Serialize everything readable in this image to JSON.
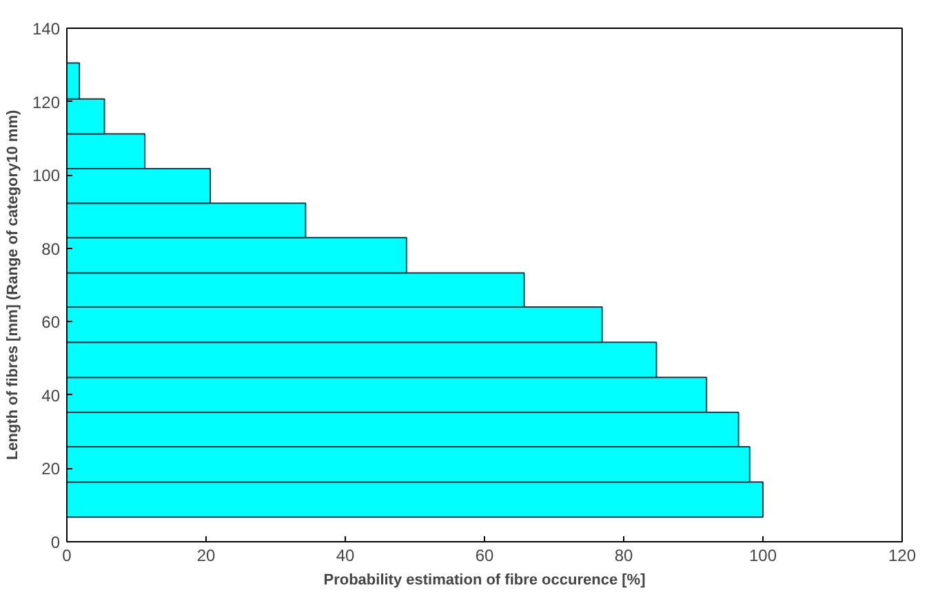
{
  "chart_data": {
    "type": "histogram",
    "orientation": "horizontal",
    "xlabel": "Probability estimation of fibre occurence [%]",
    "ylabel": "Length of fibres [mm] (Range of category10 mm)",
    "bins": [
      6.7,
      16.3,
      25.9,
      35.3,
      44.8,
      54.4,
      64,
      73.3,
      82.9,
      92.3,
      101.7,
      111.2,
      120.7,
      130.5
    ],
    "values": [
      100,
      98.1,
      96.5,
      91.9,
      84.7,
      76.9,
      65.7,
      48.8,
      34.3,
      20.6,
      11.2,
      5.4,
      1.8
    ],
    "color": "#00ffff",
    "xlim": [
      0,
      120
    ],
    "xticks": [
      0,
      20,
      40,
      60,
      80,
      100,
      120
    ],
    "ylim": [
      0,
      140
    ],
    "yticks": [
      0,
      20,
      40,
      60,
      80,
      100,
      120,
      140
    ],
    "grid": false
  }
}
